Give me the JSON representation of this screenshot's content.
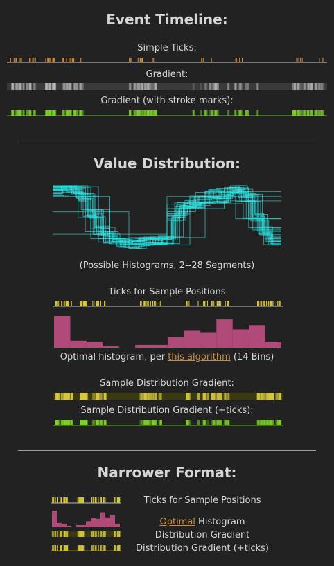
{
  "section1": {
    "title": "Event Timeline:",
    "simple_ticks_label": "Simple Ticks:",
    "gradient_label": "Gradient:",
    "gradient_stroke_label": "Gradient (with stroke marks):"
  },
  "section2": {
    "title": "Value Distribution:",
    "histograms_caption": "(Possible Histograms, 2--28 Segments)",
    "ticks_label": "Ticks for Sample Positions",
    "hist_caption_pre": "Optimal histogram, per ",
    "hist_caption_link": "this algorithm",
    "hist_caption_post": " (14 Bins)",
    "dist_gradient_label": "Sample Distribution Gradient:",
    "dist_gradient_ticks_label": "Sample Distribution Gradient (+ticks):"
  },
  "section3": {
    "title": "Narrower Format:",
    "ticks_label": "Ticks for Sample Positions",
    "hist_link": "Optimal",
    "hist_label": " Histogram",
    "gradient_label": "Distribution Gradient",
    "gradient_ticks_label": "Distribution Gradient (+ticks)"
  },
  "colors": {
    "background": "#222222",
    "tick_orange": "#d08a3c",
    "gradient_gray": "#bdbdbd",
    "gradient_green": "#7fd12a",
    "tick_yellow": "#d7c83a",
    "histogram": "#b04a78",
    "histogram_lines": "#2ee6e6",
    "link": "#c98d45"
  },
  "chart_data": {
    "type": "bar",
    "title": "",
    "bins": 14,
    "values": [
      45,
      10,
      8,
      2,
      0,
      4,
      4,
      15,
      24,
      22,
      40,
      26,
      32,
      8
    ]
  }
}
